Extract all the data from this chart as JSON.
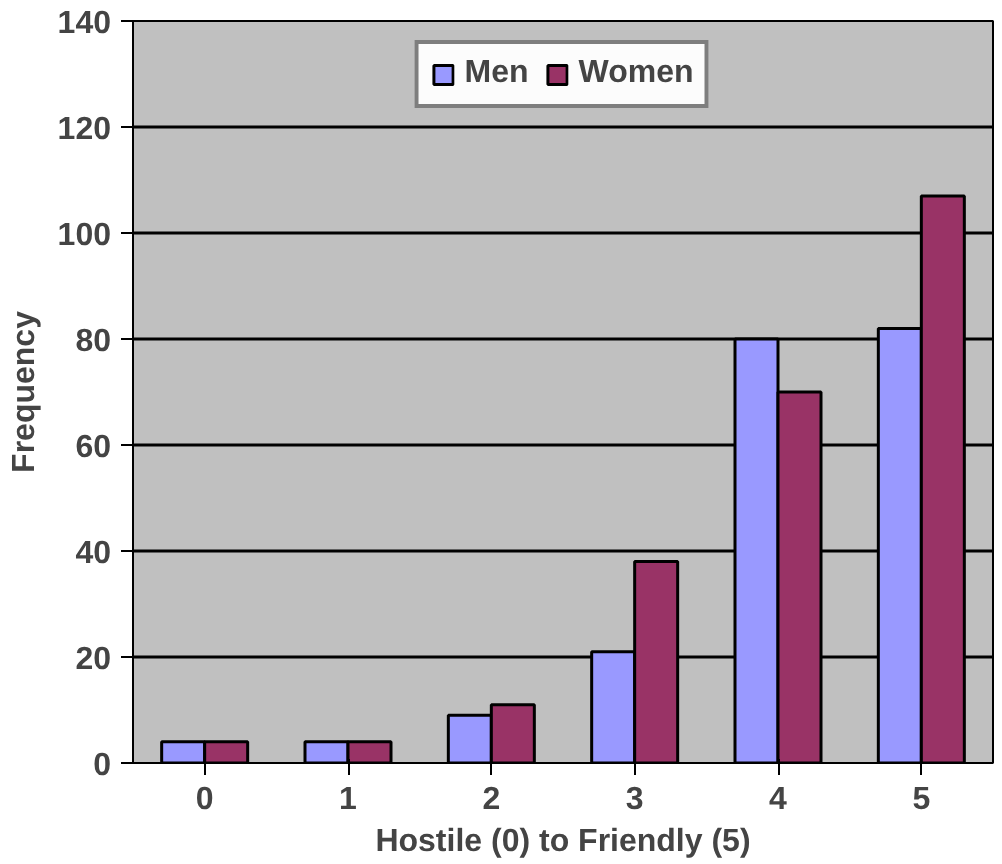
{
  "chart_data": {
    "type": "bar",
    "xlabel": "Hostile (0) to Friendly (5)",
    "ylabel": "Frequency",
    "categories": [
      "0",
      "1",
      "2",
      "3",
      "4",
      "5"
    ],
    "series": [
      {
        "name": "Men",
        "color": "#9999ff",
        "values": [
          4,
          4,
          9,
          21,
          80,
          82
        ]
      },
      {
        "name": "Women",
        "color": "#993366",
        "values": [
          4,
          4,
          11,
          38,
          70,
          107
        ]
      }
    ],
    "ylim": [
      0,
      140
    ],
    "yticks": [
      0,
      20,
      40,
      60,
      80,
      100,
      120,
      140
    ],
    "grid": "y",
    "legend": "top"
  }
}
